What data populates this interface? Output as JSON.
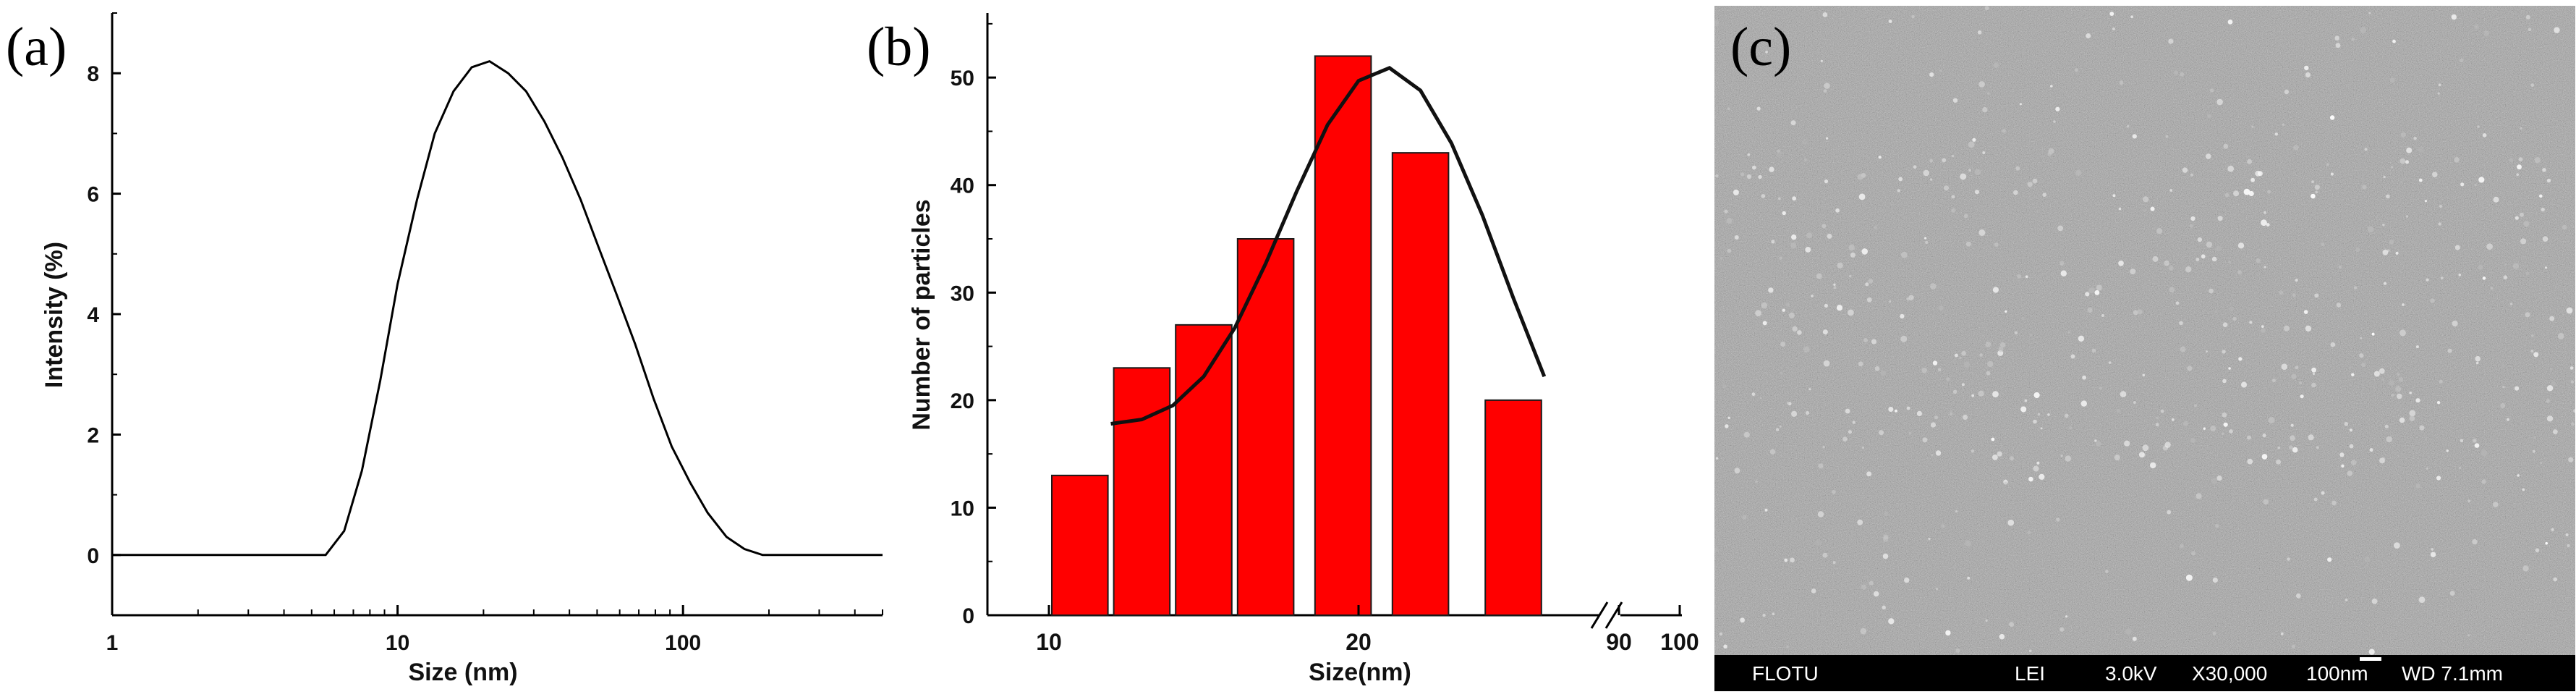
{
  "chart_data": [
    {
      "panel": "(a)",
      "type": "line",
      "xscale": "log",
      "xlabel": "Size (nm)",
      "ylabel": "Intensity (%)",
      "xlim": [
        1,
        500
      ],
      "ylim": [
        -1,
        9
      ],
      "xticks": [
        "1",
        "10",
        "100"
      ],
      "yticks": [
        "0",
        "2",
        "4",
        "6",
        "8"
      ],
      "x": [
        1,
        5.6,
        6.5,
        7.5,
        8.7,
        10,
        11.7,
        13.5,
        15.7,
        18.2,
        21,
        24.4,
        28.2,
        32.7,
        37.8,
        43.8,
        50.7,
        58.8,
        68,
        78.8,
        91.3,
        106,
        122,
        142,
        164,
        190,
        500
      ],
      "y": [
        0,
        0,
        0.4,
        1.4,
        2.9,
        4.5,
        5.9,
        7.0,
        7.7,
        8.1,
        8.2,
        8.0,
        7.7,
        7.2,
        6.6,
        5.9,
        5.1,
        4.3,
        3.5,
        2.6,
        1.8,
        1.2,
        0.7,
        0.3,
        0.1,
        0,
        0
      ]
    },
    {
      "panel": "(b)",
      "type": "bar",
      "xlabel": "Size(nm)",
      "ylabel": "Number of particles",
      "ylim": [
        0,
        56
      ],
      "yticks": [
        "0",
        "10",
        "20",
        "30",
        "40",
        "50"
      ],
      "xticks": [
        "10",
        "20",
        "90",
        "100"
      ],
      "bar_centers": [
        11,
        13,
        15,
        17,
        19.5,
        22,
        25
      ],
      "values": [
        13,
        23,
        27,
        35,
        52,
        43,
        20
      ],
      "fit": {
        "type": "gaussian",
        "x": [
          12,
          13,
          14,
          15,
          16,
          17,
          18,
          19,
          20,
          21,
          22,
          23,
          24,
          25,
          26
        ],
        "y": [
          17.8,
          18.2,
          19.5,
          22.2,
          26.7,
          32.7,
          39.4,
          45.6,
          49.7,
          50.9,
          48.8,
          43.9,
          37.2,
          29.5,
          22.2
        ]
      },
      "colors": {
        "bar": "#ff0000",
        "fit": "#111111"
      }
    }
  ],
  "panels": {
    "a": {
      "label": "(a)"
    },
    "b": {
      "label": "(b)"
    },
    "c": {
      "label": "(c)",
      "info_bar": {
        "operator": "FLOTU",
        "detector": "LEI",
        "voltage": "3.0kV",
        "magnification": "X30,000",
        "scale": "100nm",
        "working_distance": "WD 7.1mm"
      }
    }
  }
}
